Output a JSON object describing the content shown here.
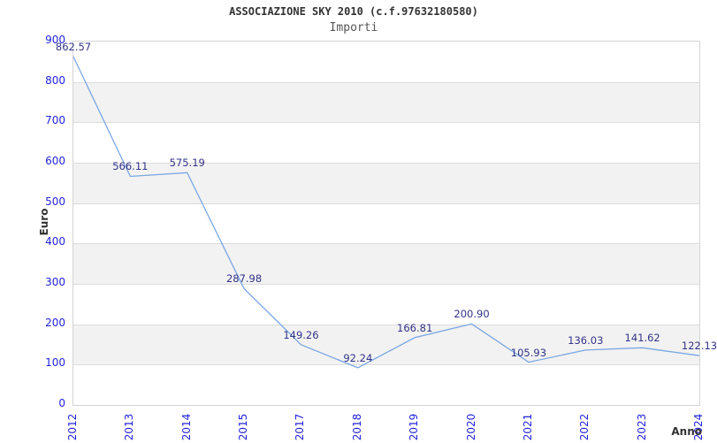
{
  "header": {
    "title": "ASSOCIAZIONE SKY 2010 (c.f.97632180580)",
    "subtitle": "Importi"
  },
  "chart_data": {
    "type": "line",
    "title": "ASSOCIAZIONE SKY 2010 (c.f.97632180580)",
    "subtitle": "Importi",
    "xlabel": "Anno",
    "ylabel": "Euro",
    "categories": [
      "2012",
      "2013",
      "2014",
      "2015",
      "2017",
      "2018",
      "2019",
      "2020",
      "2021",
      "2022",
      "2023",
      "2024"
    ],
    "values": [
      862.57,
      566.11,
      575.19,
      287.98,
      149.26,
      92.24,
      166.81,
      200.9,
      105.93,
      136.03,
      141.62,
      122.13
    ],
    "value_labels": [
      "862.57",
      "566.11",
      "575.19",
      "287.98",
      "149.26",
      "92.24",
      "166.81",
      "200.90",
      "105.93",
      "136.03",
      "141.62",
      "122.13"
    ],
    "ylim": [
      0,
      900
    ],
    "ytick_step": 100,
    "grid": true,
    "legend": false,
    "x_tick_rotation": -90,
    "band_fill": "alternating",
    "colors": {
      "line": "#7aa7e3",
      "tick_labels": "#2323dd",
      "data_labels": "#333388",
      "band": "#f2f2f2",
      "gridline": "#dcdcdc",
      "title": "#333333",
      "subtitle": "#555555"
    }
  }
}
